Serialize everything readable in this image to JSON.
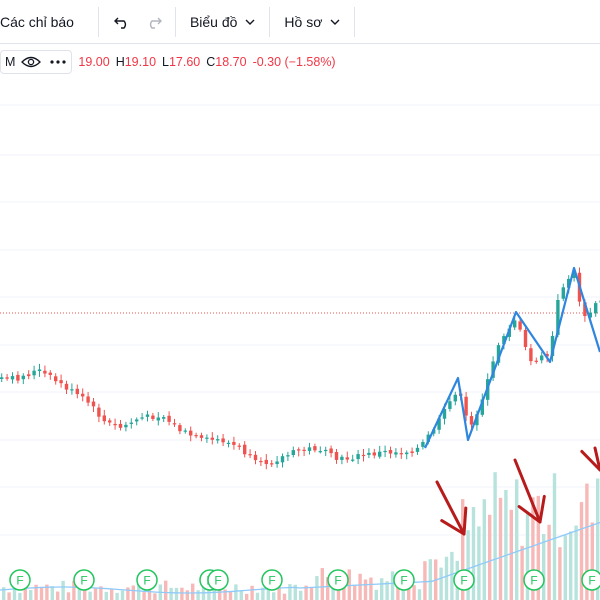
{
  "toolbar": {
    "indicators_label": "Các chỉ báo",
    "chart_menu_label": "Biểu đồ",
    "profile_menu_label": "Hồ sơ"
  },
  "legend": {
    "symbol_tail": "M",
    "open": "19.00",
    "high_label": "H",
    "high": "19.10",
    "low_label": "L",
    "low": "17.60",
    "close_label": "C",
    "close": "18.70",
    "change": "-0.30 (−1.58%)"
  },
  "colors": {
    "up": "#26a69a",
    "down": "#ef5350",
    "zigzag": "#2e86de",
    "arrow": "#b71c1c",
    "dividend_marker": "#22c55e",
    "volume_ma": "#90caf9"
  },
  "chart_data": {
    "type": "candlestick",
    "annotations": {
      "earnings_markers": [
        "F",
        "F",
        "F",
        "F",
        "F",
        "F",
        "F",
        "F",
        "F",
        "F",
        "F"
      ]
    }
  }
}
